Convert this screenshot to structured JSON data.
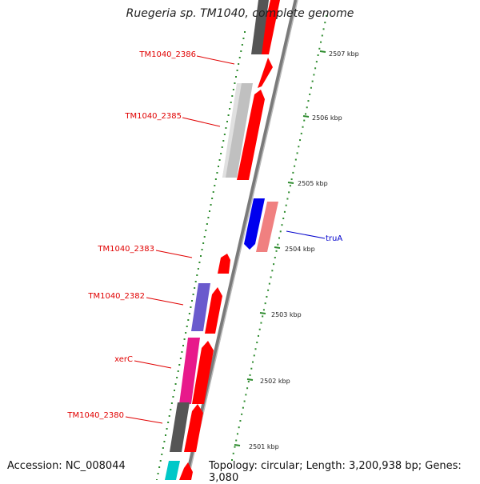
{
  "title": "Ruegeria sp. TM1040, complete genome",
  "footer": {
    "accession": "Accession: NC_008044",
    "summary": "Topology: circular; Length: 3,200,938 bp; Genes: 3,080"
  },
  "scale_labels": [
    "2507 kbp",
    "2506 kbp",
    "2505 kbp",
    "2504 kbp",
    "2503 kbp",
    "2502 kbp",
    "2501 kbp"
  ],
  "gene_labels": [
    {
      "text": "TM1040_2386",
      "color": "#e00000"
    },
    {
      "text": "TM1040_2385",
      "color": "#e00000"
    },
    {
      "text": "truA",
      "color": "#0000cc"
    },
    {
      "text": "TM1040_2383",
      "color": "#e00000"
    },
    {
      "text": "TM1040_2382",
      "color": "#e00000"
    },
    {
      "text": "xerC",
      "color": "#e00000"
    },
    {
      "text": "TM1040_2380",
      "color": "#e00000"
    }
  ],
  "colors": {
    "cds": "#ff0000",
    "backbone": "#888888",
    "tick": "#2e8b2e",
    "gray_gene": "#bbbbbb",
    "dark_gene": "#555555",
    "blue_gene": "#0000ee",
    "pink_gene": "#f08080",
    "purple_gene": "#6a5acd",
    "magenta_gene": "#e8198b",
    "cyan_gene": "#00c8c8"
  }
}
